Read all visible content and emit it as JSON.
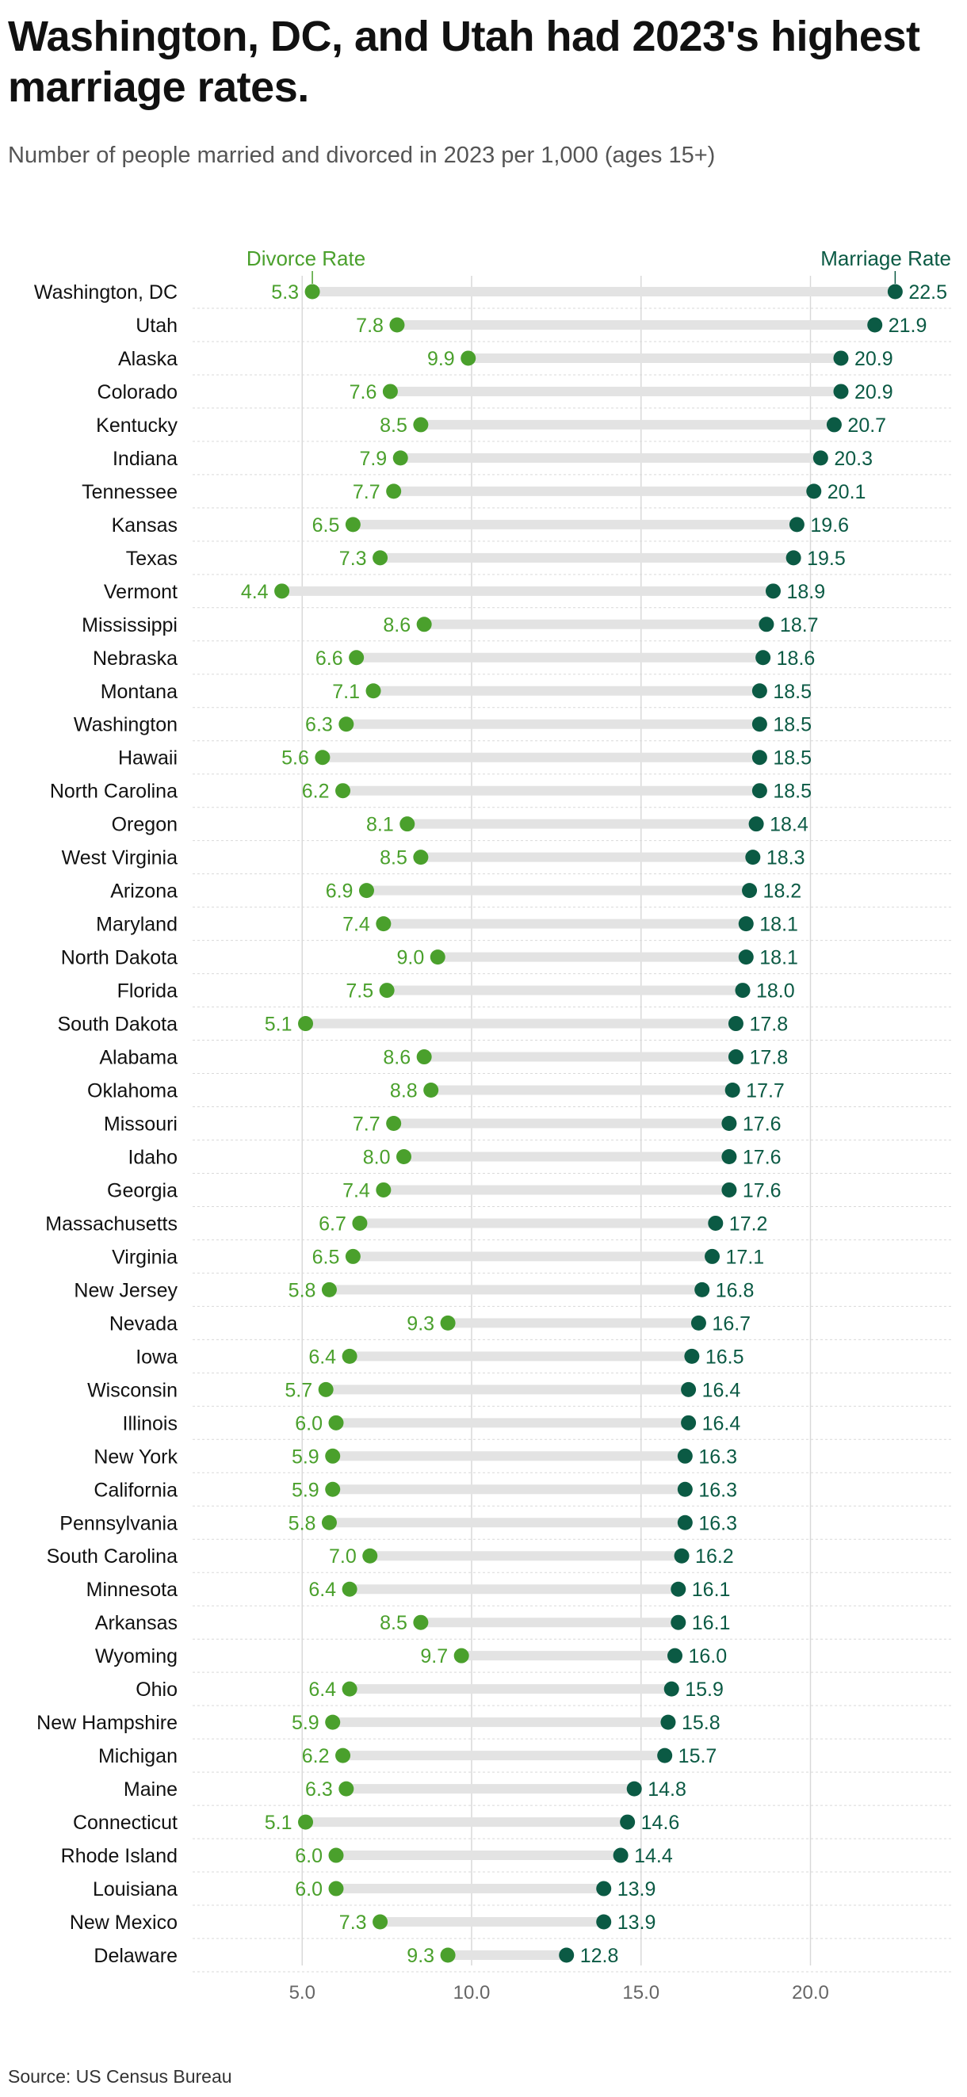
{
  "title": "Washington, DC, and Utah had 2023's highest marriage rates.",
  "subtitle": "Number of people married and divorced in 2023 per 1,000 (ages 15+)",
  "source": "Source: US Census Bureau",
  "colors": {
    "divorce": "#4aa02c",
    "marriage": "#0b5a44",
    "connector": "#e3e3e3",
    "grid": "#d9d9d9"
  },
  "chart_data": {
    "type": "dumbbell",
    "categories": [
      "Washington, DC",
      "Utah",
      "Alaska",
      "Colorado",
      "Kentucky",
      "Indiana",
      "Tennessee",
      "Kansas",
      "Texas",
      "Vermont",
      "Mississippi",
      "Nebraska",
      "Montana",
      "Washington",
      "Hawaii",
      "North Carolina",
      "Oregon",
      "West Virginia",
      "Arizona",
      "Maryland",
      "North Dakota",
      "Florida",
      "South Dakota",
      "Alabama",
      "Oklahoma",
      "Missouri",
      "Idaho",
      "Georgia",
      "Massachusetts",
      "Virginia",
      "New Jersey",
      "Nevada",
      "Iowa",
      "Wisconsin",
      "Illinois",
      "New York",
      "California",
      "Pennsylvania",
      "South Carolina",
      "Minnesota",
      "Arkansas",
      "Wyoming",
      "Ohio",
      "New Hampshire",
      "Michigan",
      "Maine",
      "Connecticut",
      "Rhode Island",
      "Louisiana",
      "New Mexico",
      "Delaware"
    ],
    "series": [
      {
        "name": "Divorce Rate",
        "values": [
          5.3,
          7.8,
          9.9,
          7.6,
          8.5,
          7.9,
          7.7,
          6.5,
          7.3,
          4.4,
          8.6,
          6.6,
          7.1,
          6.3,
          5.6,
          6.2,
          8.1,
          8.5,
          6.9,
          7.4,
          9.0,
          7.5,
          5.1,
          8.6,
          8.8,
          7.7,
          8.0,
          7.4,
          6.7,
          6.5,
          5.8,
          9.3,
          6.4,
          5.7,
          6.0,
          5.9,
          5.9,
          5.8,
          7.0,
          6.4,
          8.5,
          9.7,
          6.4,
          5.9,
          6.2,
          6.3,
          5.1,
          6.0,
          6.0,
          7.3,
          9.3
        ]
      },
      {
        "name": "Marriage Rate",
        "values": [
          22.5,
          21.9,
          20.9,
          20.9,
          20.7,
          20.3,
          20.1,
          19.6,
          19.5,
          18.9,
          18.7,
          18.6,
          18.5,
          18.5,
          18.5,
          18.5,
          18.4,
          18.3,
          18.2,
          18.1,
          18.1,
          18.0,
          17.8,
          17.8,
          17.7,
          17.6,
          17.6,
          17.6,
          17.2,
          17.1,
          16.8,
          16.7,
          16.5,
          16.4,
          16.4,
          16.3,
          16.3,
          16.3,
          16.2,
          16.1,
          16.1,
          16.0,
          15.9,
          15.8,
          15.7,
          14.8,
          14.6,
          14.4,
          13.9,
          13.9,
          12.8
        ]
      }
    ],
    "x_ticks": [
      5.0,
      10.0,
      15.0,
      20.0
    ],
    "x_tick_labels": [
      "5.0",
      "10.0",
      "15.0",
      "20.0"
    ],
    "xlim": [
      2.0,
      25.2
    ],
    "xlabel": "",
    "ylabel": "",
    "grid": true,
    "legend": "top, labels above each series' end"
  }
}
